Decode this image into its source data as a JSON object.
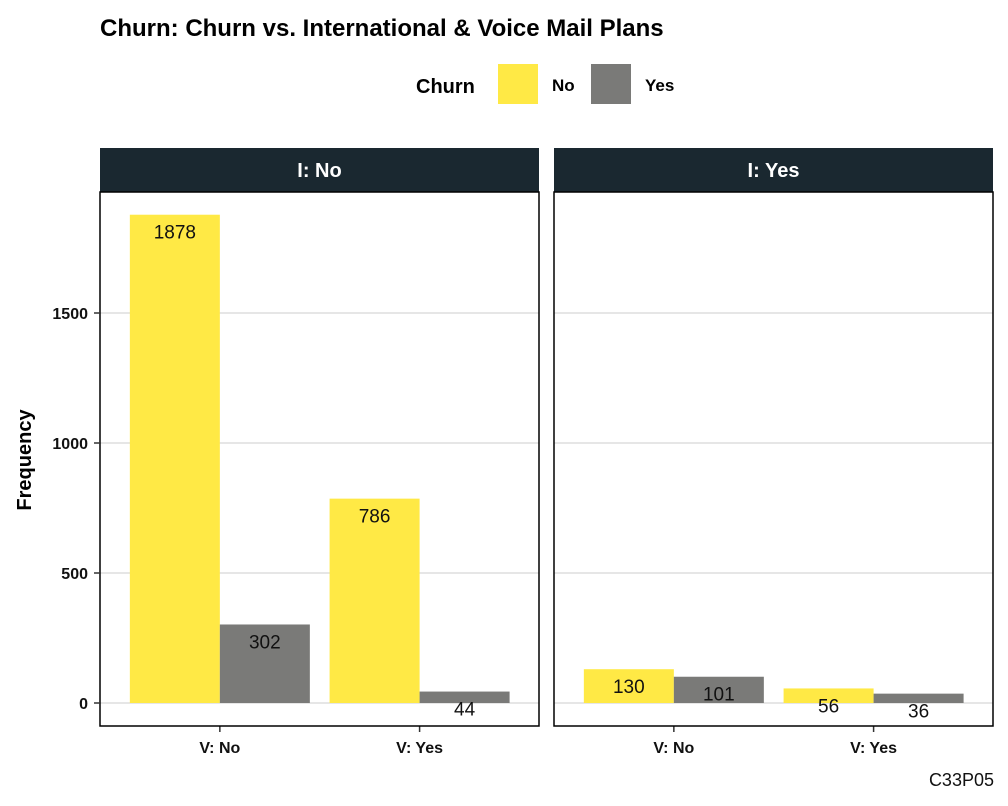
{
  "chart_data": {
    "type": "bar",
    "title": "Churn: Churn vs. International & Voice Mail Plans",
    "ylabel": "Frequency",
    "xlabel": "",
    "ylim": [
      0,
      2000
    ],
    "yticks": [
      0,
      500,
      1000,
      1500
    ],
    "grid": true,
    "legend": {
      "title": "Churn",
      "placement": "top",
      "entries": [
        {
          "name": "No",
          "color": "#FFE945"
        },
        {
          "name": "Yes",
          "color": "#7A7A78"
        }
      ]
    },
    "categories": [
      "V: No",
      "V: Yes"
    ],
    "facets": [
      {
        "label": "I: No",
        "series": [
          {
            "name": "No",
            "values": [
              1878,
              786
            ]
          },
          {
            "name": "Yes",
            "values": [
              302,
              44
            ]
          }
        ]
      },
      {
        "label": "I: Yes",
        "series": [
          {
            "name": "No",
            "values": [
              130,
              56
            ]
          },
          {
            "name": "Yes",
            "values": [
              101,
              36
            ]
          }
        ]
      }
    ],
    "caption": "C33P05"
  },
  "colors": {
    "strip_bg": "#1A2830",
    "grid": "#E6E6E6",
    "panel_border": "#000000"
  }
}
